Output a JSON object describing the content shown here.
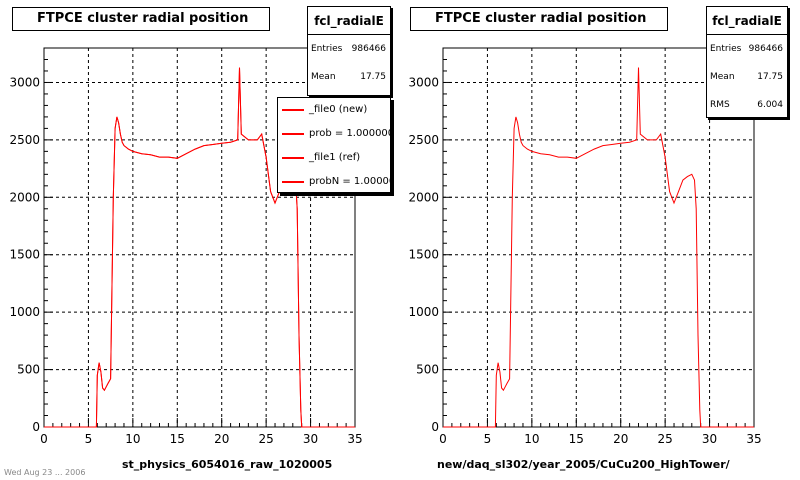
{
  "colors": {
    "hist_line": "#ff0000",
    "frame": "#000000",
    "grid": "#000000",
    "background": "#ffffff"
  },
  "panels": [
    {
      "title": "FTPCE cluster radial position",
      "stats": {
        "name": "fcl_radialE",
        "rows": [
          {
            "key": "Entries",
            "value": "986466"
          },
          {
            "key": "Mean",
            "value": "17.75"
          }
        ]
      },
      "legend": [
        "_file0 (new)",
        "prob = 1.000000",
        "_file1 (ref)",
        "probN = 1.000000"
      ],
      "xtitle": "st_physics_6054016_raw_1020005"
    },
    {
      "title": "FTPCE cluster radial position",
      "stats": {
        "name": "fcl_radialE",
        "rows": [
          {
            "key": "Entries",
            "value": "986466"
          },
          {
            "key": "Mean",
            "value": "17.75"
          },
          {
            "key": "RMS",
            "value": "6.004"
          }
        ]
      },
      "xtitle": "new/daq_sl302/year_2005/CuCu200_HighTower/"
    }
  ],
  "footer": "Wed Aug 23 ... 2006",
  "chart_data": [
    {
      "type": "line",
      "title": "FTPCE cluster radial position",
      "xlabel": "st_physics_6054016_raw_1020005",
      "ylabel": "",
      "xlim": [
        0,
        35
      ],
      "ylim": [
        0,
        3300
      ],
      "xticks": [
        0,
        5,
        10,
        15,
        20,
        25,
        30,
        35
      ],
      "yticks": [
        0,
        500,
        1000,
        1500,
        2000,
        2500,
        3000
      ],
      "grid": true,
      "legend_position": "top-right",
      "series": [
        {
          "name": "_file0 (new)",
          "x": [
            5.9,
            6.0,
            6.2,
            6.4,
            6.6,
            6.8,
            7.0,
            7.2,
            7.5,
            7.8,
            8.0,
            8.2,
            8.4,
            8.6,
            8.8,
            9.0,
            9.5,
            10.0,
            11.0,
            12.0,
            13.0,
            14.0,
            15.0,
            16.0,
            17.0,
            18.0,
            19.0,
            20.0,
            21.0,
            21.8,
            22.0,
            22.2,
            23.0,
            24.0,
            24.5,
            25.0,
            25.5,
            26.0,
            26.5,
            27.0,
            27.5,
            28.0,
            28.3,
            28.5,
            28.7,
            28.9,
            29.0
          ],
          "y": [
            0,
            450,
            560,
            480,
            340,
            320,
            350,
            380,
            420,
            2000,
            2600,
            2700,
            2650,
            2550,
            2480,
            2450,
            2420,
            2400,
            2380,
            2370,
            2350,
            2350,
            2340,
            2380,
            2420,
            2450,
            2460,
            2470,
            2480,
            2500,
            3130,
            2550,
            2500,
            2500,
            2550,
            2350,
            2050,
            1950,
            2050,
            2150,
            2180,
            2200,
            2150,
            1900,
            800,
            150,
            0
          ]
        },
        {
          "name": "_file1 (ref)",
          "x": [
            5.9,
            6.0,
            6.2,
            6.4,
            6.6,
            6.8,
            7.0,
            7.2,
            7.5,
            7.8,
            8.0,
            8.2,
            8.4,
            8.6,
            8.8,
            9.0,
            9.5,
            10.0,
            11.0,
            12.0,
            13.0,
            14.0,
            15.0,
            16.0,
            17.0,
            18.0,
            19.0,
            20.0,
            21.0,
            21.8,
            22.0,
            22.2,
            23.0,
            24.0,
            24.5,
            25.0,
            25.5,
            26.0,
            26.5,
            27.0,
            27.5,
            28.0,
            28.3,
            28.5,
            28.7,
            28.9,
            29.0
          ],
          "y": [
            0,
            450,
            560,
            480,
            340,
            320,
            350,
            380,
            420,
            2000,
            2600,
            2700,
            2650,
            2550,
            2480,
            2450,
            2420,
            2400,
            2380,
            2370,
            2350,
            2350,
            2340,
            2380,
            2420,
            2450,
            2460,
            2470,
            2480,
            2500,
            3130,
            2550,
            2500,
            2500,
            2550,
            2350,
            2050,
            1950,
            2050,
            2150,
            2180,
            2200,
            2150,
            1900,
            800,
            150,
            0
          ]
        }
      ]
    },
    {
      "type": "line",
      "title": "FTPCE cluster radial position",
      "xlabel": "new/daq_sl302/year_2005/CuCu200_HighTower/",
      "ylabel": "",
      "xlim": [
        0,
        35
      ],
      "ylim": [
        0,
        3300
      ],
      "xticks": [
        0,
        5,
        10,
        15,
        20,
        25,
        30,
        35
      ],
      "yticks": [
        0,
        500,
        1000,
        1500,
        2000,
        2500,
        3000
      ],
      "grid": true,
      "series": [
        {
          "x": [
            5.9,
            6.0,
            6.2,
            6.4,
            6.6,
            6.8,
            7.0,
            7.2,
            7.5,
            7.8,
            8.0,
            8.2,
            8.4,
            8.6,
            8.8,
            9.0,
            9.5,
            10.0,
            11.0,
            12.0,
            13.0,
            14.0,
            15.0,
            16.0,
            17.0,
            18.0,
            19.0,
            20.0,
            21.0,
            21.8,
            22.0,
            22.2,
            23.0,
            24.0,
            24.5,
            25.0,
            25.5,
            26.0,
            26.5,
            27.0,
            27.5,
            28.0,
            28.3,
            28.5,
            28.7,
            28.9,
            29.0
          ],
          "y": [
            0,
            450,
            560,
            480,
            340,
            320,
            350,
            380,
            420,
            2000,
            2600,
            2700,
            2650,
            2550,
            2480,
            2450,
            2420,
            2400,
            2380,
            2370,
            2350,
            2350,
            2340,
            2380,
            2420,
            2450,
            2460,
            2470,
            2480,
            2500,
            3130,
            2550,
            2500,
            2500,
            2550,
            2350,
            2050,
            1950,
            2050,
            2150,
            2180,
            2200,
            2150,
            1900,
            800,
            150,
            0
          ]
        }
      ]
    }
  ]
}
